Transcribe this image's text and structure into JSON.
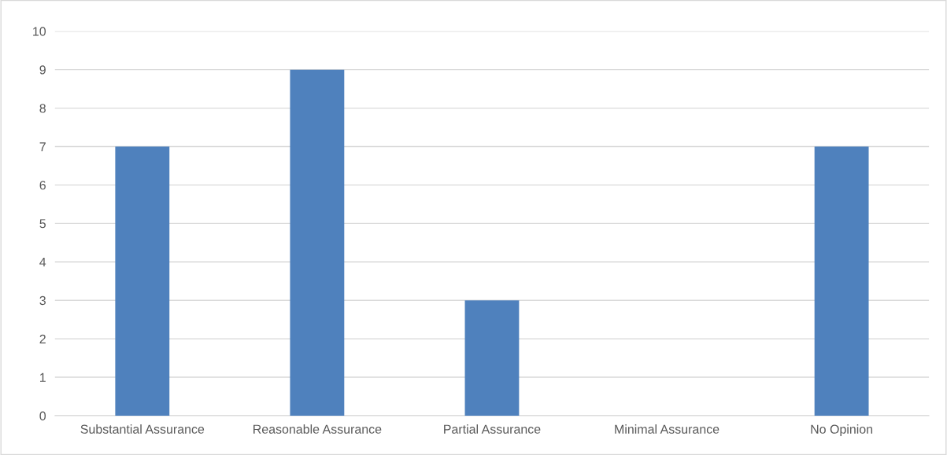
{
  "chart_data": {
    "type": "bar",
    "categories": [
      "Substantial Assurance",
      "Reasonable Assurance",
      "Partial Assurance",
      "Minimal Assurance",
      "No Opinion"
    ],
    "values": [
      7,
      9,
      3,
      0,
      7
    ],
    "color": "#4f81bd",
    "ylim": [
      0,
      10
    ],
    "yticks": [
      0,
      1,
      2,
      3,
      4,
      5,
      6,
      7,
      8,
      9,
      10
    ],
    "grid": "y",
    "legend": false
  }
}
